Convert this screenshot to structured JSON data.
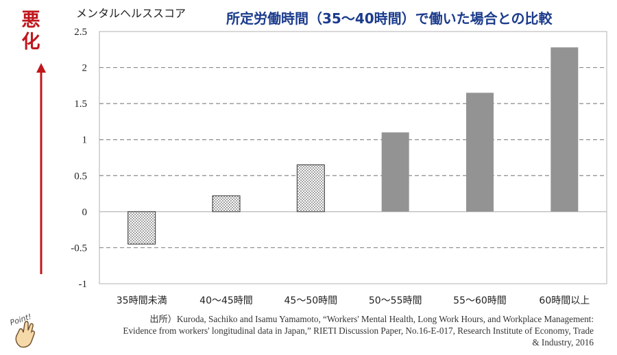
{
  "side_label": [
    "悪",
    "化"
  ],
  "chart_data": {
    "type": "bar",
    "title": "所定労働時間（35～40時間）で働いた場合との比較",
    "ylabel": "メンタルヘルススコア",
    "xlabel": "",
    "categories": [
      "35時間未満",
      "40～45時間",
      "45～50時間",
      "50～55時間",
      "55～60時間",
      "60時間以上"
    ],
    "values": [
      -0.45,
      0.22,
      0.65,
      1.1,
      1.65,
      2.28
    ],
    "bar_styles": [
      "dotted",
      "dotted",
      "dotted",
      "solid",
      "solid",
      "solid"
    ],
    "ylim": [
      -1,
      2.5
    ],
    "yticks": [
      2.5,
      2,
      1.5,
      1,
      0.5,
      0,
      -0.5,
      -1
    ],
    "grid": "dashed-horizontal",
    "colors": {
      "solid_bar": "#939393",
      "dotted_bar_fill": "#ffffff",
      "dot": "#555555",
      "grid": "#8a8a8a",
      "axis": "#bdbdbd"
    }
  },
  "source": {
    "line1": "出所）Kuroda, Sachiko and Isamu Yamamoto, “Workers' Mental Health, Long Work Hours, and Workplace Management:",
    "line2": "Evidence from workers' longitudinal data in Japan,” RIETI Discussion Paper, No.16-E-017, Research Institute of Economy, Trade",
    "line3": "& Industry, 2016"
  },
  "badge_text": "Point!",
  "colors": {
    "accent": "#c0171d",
    "title": "#1b3b8c"
  }
}
